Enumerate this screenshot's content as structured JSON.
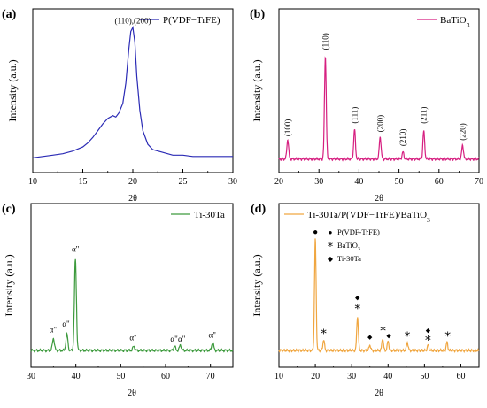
{
  "chart_data": [
    {
      "panel_label": "(a)",
      "type": "line",
      "xlabel": "2θ",
      "ylabel": "Intensity (a.u.)",
      "xlim": [
        10,
        30
      ],
      "xticks": [
        10,
        15,
        20,
        25,
        30
      ],
      "legend": {
        "placement": "top-right",
        "entries": [
          "P(VDF−TrFE)"
        ]
      },
      "series": [
        {
          "name": "P(VDF−TrFE)",
          "color": "#2b2bb5",
          "x": [
            10,
            11,
            12,
            13,
            14,
            15,
            15.5,
            16,
            16.5,
            17,
            17.5,
            18,
            18.3,
            18.6,
            19,
            19.3,
            19.6,
            19.8,
            20,
            20.2,
            20.4,
            20.7,
            21,
            21.5,
            22,
            23,
            24,
            25,
            26,
            28,
            30
          ],
          "values": [
            0.0,
            0.01,
            0.02,
            0.03,
            0.05,
            0.08,
            0.11,
            0.15,
            0.2,
            0.25,
            0.29,
            0.31,
            0.3,
            0.33,
            0.4,
            0.55,
            0.8,
            0.93,
            0.96,
            0.85,
            0.6,
            0.35,
            0.2,
            0.1,
            0.06,
            0.04,
            0.02,
            0.02,
            0.01,
            0.01,
            0.01
          ]
        }
      ],
      "annotations": [
        {
          "text": "(110),(200)",
          "x": 20.0,
          "y": 0.99
        }
      ]
    },
    {
      "panel_label": "(b)",
      "type": "line",
      "xlabel": "2θ",
      "ylabel": "Intensity (a.u.)",
      "xlim": [
        20,
        70
      ],
      "xticks": [
        20,
        30,
        40,
        50,
        60,
        70
      ],
      "legend": {
        "placement": "top-right",
        "entries": [
          "BaTiO3"
        ]
      },
      "series": [
        {
          "name": "BaTiO3",
          "color": "#d61f80",
          "peaks": [
            {
              "x": 22.2,
              "height": 0.14
            },
            {
              "x": 31.6,
              "height": 0.74
            },
            {
              "x": 38.9,
              "height": 0.21
            },
            {
              "x": 45.3,
              "height": 0.16
            },
            {
              "x": 51.0,
              "height": 0.05
            },
            {
              "x": 56.2,
              "height": 0.2
            },
            {
              "x": 65.9,
              "height": 0.1
            }
          ]
        }
      ],
      "annotations": [
        {
          "text": "(100)",
          "x": 22.2,
          "y": 0.24
        },
        {
          "text": "(110)",
          "x": 31.6,
          "y": 0.86
        },
        {
          "text": "(111)",
          "x": 38.9,
          "y": 0.33
        },
        {
          "text": "(200)",
          "x": 45.3,
          "y": 0.27
        },
        {
          "text": "(210)",
          "x": 51.0,
          "y": 0.17
        },
        {
          "text": "(211)",
          "x": 56.2,
          "y": 0.33
        },
        {
          "text": "(220)",
          "x": 65.9,
          "y": 0.21
        }
      ]
    },
    {
      "panel_label": "(c)",
      "type": "line",
      "xlabel": "2θ",
      "ylabel": "Intensity (a.u.)",
      "xlim": [
        30,
        75
      ],
      "xticks": [
        30,
        40,
        50,
        60,
        70
      ],
      "legend": {
        "placement": "top-right",
        "entries": [
          "Ti-30Ta"
        ]
      },
      "series": [
        {
          "name": "Ti-30Ta",
          "color": "#3d9a3d",
          "peaks": [
            {
              "x": 35.0,
              "height": 0.09
            },
            {
              "x": 38.0,
              "height": 0.12
            },
            {
              "x": 39.9,
              "height": 0.67
            },
            {
              "x": 52.9,
              "height": 0.03
            },
            {
              "x": 62.0,
              "height": 0.03
            },
            {
              "x": 63.3,
              "height": 0.04
            },
            {
              "x": 70.5,
              "height": 0.06
            }
          ]
        }
      ],
      "annotations": [
        {
          "text": "α\"",
          "x": 34.9,
          "y": 0.15
        },
        {
          "text": "α\"",
          "x": 37.8,
          "y": 0.19
        },
        {
          "text": "α\"",
          "x": 39.9,
          "y": 0.74
        },
        {
          "text": "α\"",
          "x": 52.8,
          "y": 0.09
        },
        {
          "text": "α\"",
          "x": 61.9,
          "y": 0.08
        },
        {
          "text": "α\"",
          "x": 63.6,
          "y": 0.08
        },
        {
          "text": "α\"",
          "x": 70.4,
          "y": 0.11
        }
      ]
    },
    {
      "panel_label": "(d)",
      "type": "line",
      "xlabel": "2θ",
      "ylabel": "Intensity (a.u.)",
      "xlim": [
        10,
        65
      ],
      "xticks": [
        10,
        20,
        30,
        40,
        50,
        60
      ],
      "legend": {
        "placement": "top-right",
        "entries": [
          "Ti-30Ta/P(VDF−TrFE)/BaTiO3"
        ],
        "marker_key": [
          {
            "symbol": "●",
            "label": "P(VDF-TrFE)"
          },
          {
            "symbol": "∗",
            "label": "BaTiO3"
          },
          {
            "symbol": "◆",
            "label": "Ti-30Ta"
          }
        ]
      },
      "series": [
        {
          "name": "Ti-30Ta/P(VDF−TrFE)/BaTiO3",
          "color": "#f0a640",
          "peaks": [
            {
              "x": 20.0,
              "height": 0.82
            },
            {
              "x": 22.3,
              "height": 0.08
            },
            {
              "x": 31.6,
              "height": 0.25
            },
            {
              "x": 35.0,
              "height": 0.04
            },
            {
              "x": 38.5,
              "height": 0.09
            },
            {
              "x": 40.0,
              "height": 0.07
            },
            {
              "x": 45.3,
              "height": 0.06
            },
            {
              "x": 51.0,
              "height": 0.04
            },
            {
              "x": 56.2,
              "height": 0.06
            }
          ]
        }
      ],
      "annotations": [
        {
          "text": "●",
          "x": 20.0,
          "y": 0.87
        },
        {
          "text": "∗",
          "x": 22.3,
          "y": 0.13
        },
        {
          "text": "◆",
          "x": 31.6,
          "y": 0.39
        },
        {
          "text": "∗",
          "x": 31.6,
          "y": 0.31
        },
        {
          "text": "◆",
          "x": 35.0,
          "y": 0.1
        },
        {
          "text": "∗",
          "x": 38.6,
          "y": 0.15
        },
        {
          "text": "◆",
          "x": 40.2,
          "y": 0.11
        },
        {
          "text": "∗",
          "x": 45.3,
          "y": 0.11
        },
        {
          "text": "◆",
          "x": 51.0,
          "y": 0.15
        },
        {
          "text": "∗",
          "x": 51.0,
          "y": 0.08
        },
        {
          "text": "∗",
          "x": 56.4,
          "y": 0.11
        }
      ]
    }
  ]
}
